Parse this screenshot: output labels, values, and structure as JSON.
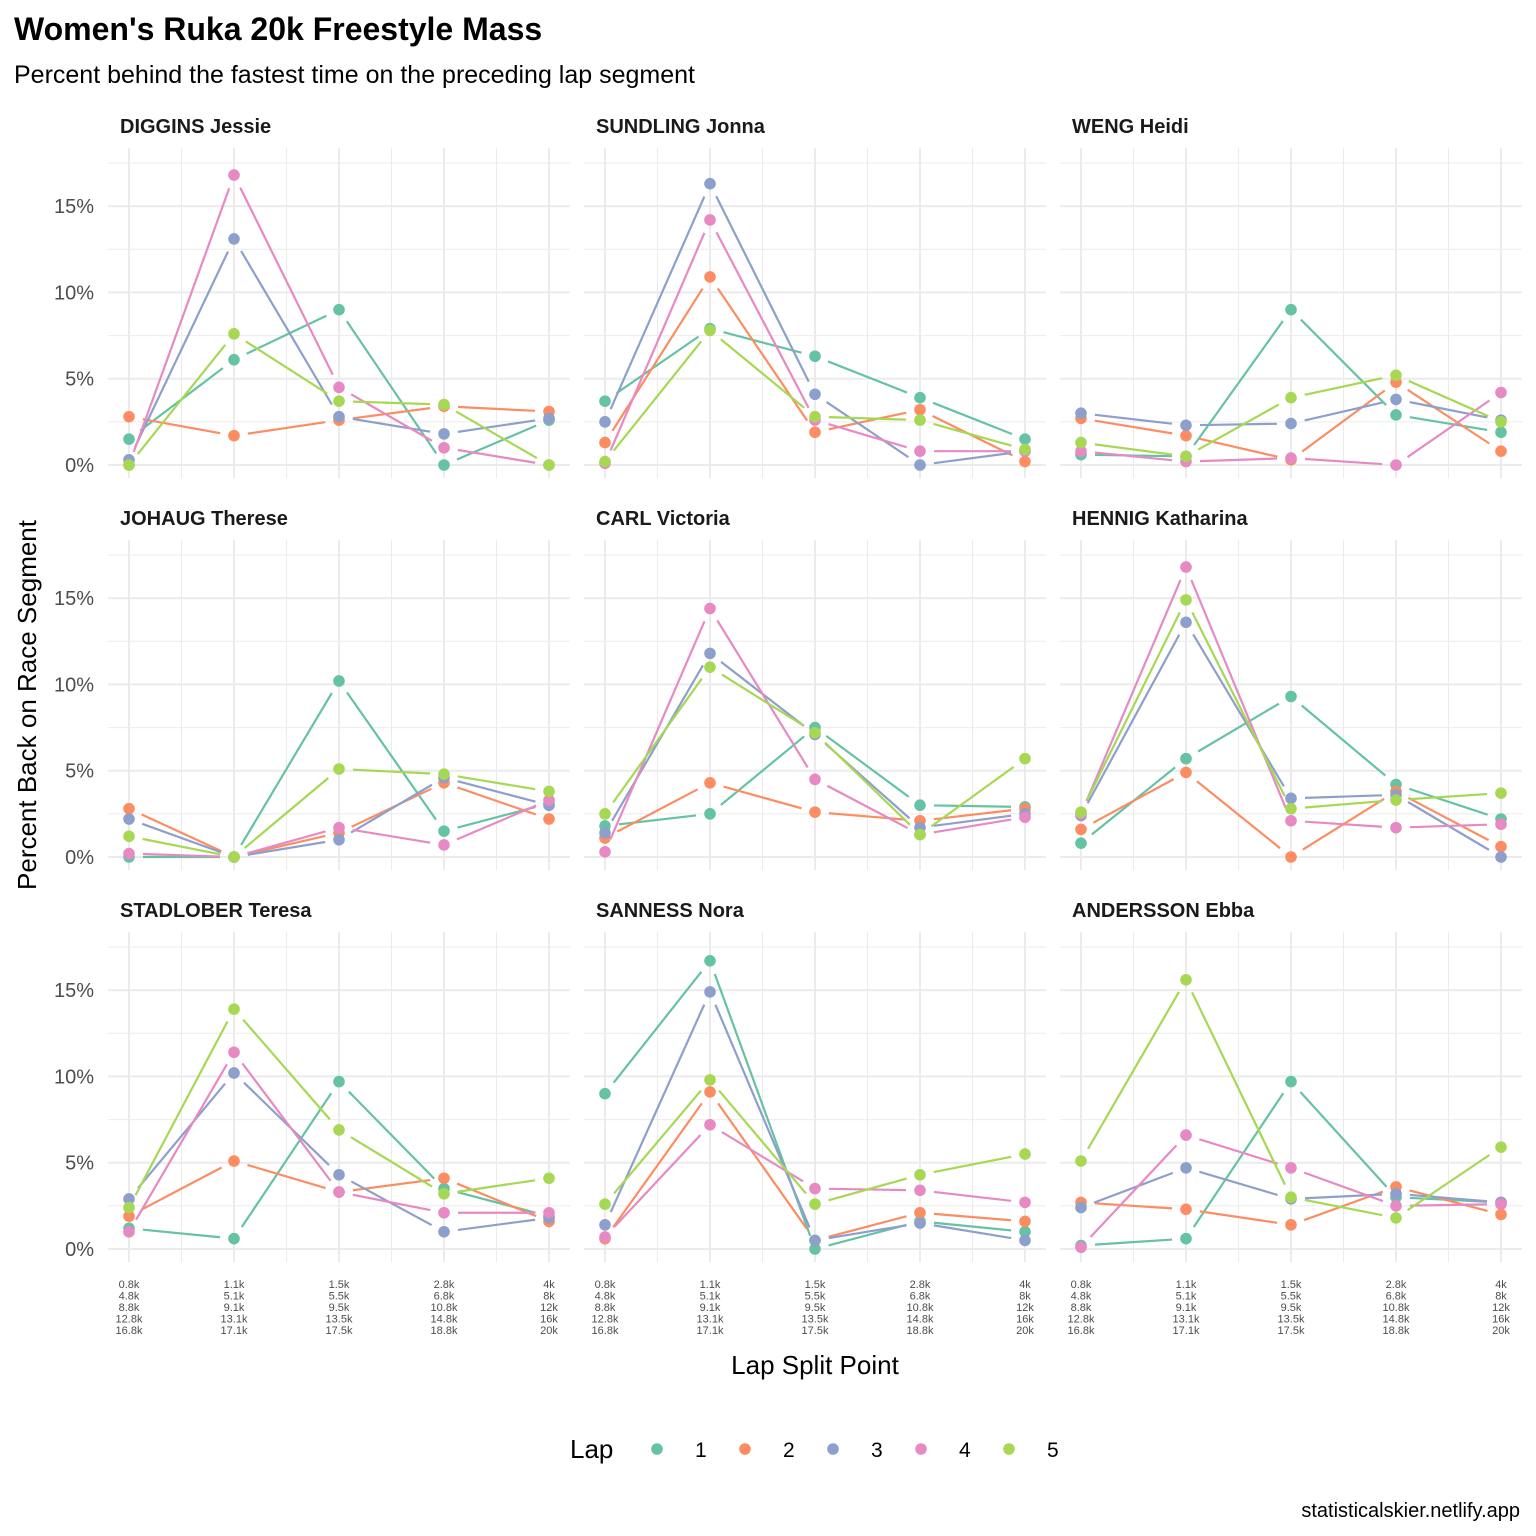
{
  "chart_data": {
    "type": "line",
    "title": "Women's Ruka 20k Freestyle Mass",
    "subtitle": "Percent behind the fastest time on the preceding lap segment",
    "xlabel": "Lap Split Point",
    "ylabel": "Percent Back on Race Segment",
    "caption": "statisticalskier.netlify.app",
    "ylim": [
      0,
      17.5
    ],
    "yticks": [
      "0%",
      "5%",
      "10%",
      "15%"
    ],
    "x_categories": [
      [
        "0.8k",
        "4.8k",
        "8.8k",
        "12.8k",
        "16.8k"
      ],
      [
        "1.1k",
        "5.1k",
        "9.1k",
        "13.1k",
        "17.1k"
      ],
      [
        "1.5k",
        "5.5k",
        "9.5k",
        "13.5k",
        "17.5k"
      ],
      [
        "2.8k",
        "6.8k",
        "10.8k",
        "14.8k",
        "18.8k"
      ],
      [
        "4k",
        "8k",
        "12k",
        "16k",
        "20k"
      ]
    ],
    "legend": {
      "title": "Lap",
      "position": "bottom",
      "entries": [
        {
          "label": "1",
          "color": "#66c2a5"
        },
        {
          "label": "2",
          "color": "#fc8d62"
        },
        {
          "label": "3",
          "color": "#8da0cb"
        },
        {
          "label": "4",
          "color": "#e78ac3"
        },
        {
          "label": "5",
          "color": "#a6d854"
        }
      ]
    },
    "grid": true,
    "panels": [
      {
        "name": "DIGGINS Jessie",
        "series": [
          {
            "lap": "1",
            "values": [
              1.5,
              6.1,
              9.0,
              0.0,
              2.6
            ]
          },
          {
            "lap": "2",
            "values": [
              2.8,
              1.7,
              2.6,
              3.4,
              3.1
            ]
          },
          {
            "lap": "3",
            "values": [
              0.3,
              13.1,
              2.8,
              1.8,
              2.7
            ]
          },
          {
            "lap": "4",
            "values": [
              0.0,
              16.8,
              4.5,
              1.0,
              0.0
            ]
          },
          {
            "lap": "5",
            "values": [
              0.0,
              7.6,
              3.7,
              3.5,
              0.0
            ]
          }
        ]
      },
      {
        "name": "SUNDLING Jonna",
        "series": [
          {
            "lap": "1",
            "values": [
              3.7,
              7.9,
              6.3,
              3.9,
              1.5
            ]
          },
          {
            "lap": "2",
            "values": [
              1.3,
              10.9,
              1.9,
              3.2,
              0.2
            ]
          },
          {
            "lap": "3",
            "values": [
              2.5,
              16.3,
              4.1,
              0.0,
              0.8
            ]
          },
          {
            "lap": "4",
            "values": [
              0.1,
              14.2,
              2.6,
              0.8,
              0.8
            ]
          },
          {
            "lap": "5",
            "values": [
              0.2,
              7.8,
              2.8,
              2.6,
              0.9
            ]
          }
        ]
      },
      {
        "name": "WENG Heidi",
        "series": [
          {
            "lap": "1",
            "values": [
              0.6,
              0.5,
              9.0,
              2.9,
              1.9
            ]
          },
          {
            "lap": "2",
            "values": [
              2.7,
              1.7,
              0.3,
              4.8,
              0.8
            ]
          },
          {
            "lap": "3",
            "values": [
              3.0,
              2.3,
              2.4,
              3.8,
              2.6
            ]
          },
          {
            "lap": "4",
            "values": [
              0.8,
              0.2,
              0.4,
              0.0,
              4.2
            ]
          },
          {
            "lap": "5",
            "values": [
              1.3,
              0.5,
              3.9,
              5.2,
              2.5
            ]
          }
        ]
      },
      {
        "name": "JOHAUG Therese",
        "series": [
          {
            "lap": "1",
            "values": [
              0.0,
              0.0,
              10.2,
              1.5,
              3.1
            ]
          },
          {
            "lap": "2",
            "values": [
              2.8,
              0.0,
              1.4,
              4.3,
              2.2
            ]
          },
          {
            "lap": "3",
            "values": [
              2.2,
              0.0,
              1.0,
              4.6,
              3.0
            ]
          },
          {
            "lap": "4",
            "values": [
              0.2,
              0.0,
              1.7,
              0.7,
              3.3
            ]
          },
          {
            "lap": "5",
            "values": [
              1.2,
              0.0,
              5.1,
              4.8,
              3.8
            ]
          }
        ]
      },
      {
        "name": "CARL Victoria",
        "series": [
          {
            "lap": "1",
            "values": [
              1.8,
              2.5,
              7.5,
              3.0,
              2.9
            ]
          },
          {
            "lap": "2",
            "values": [
              1.1,
              4.3,
              2.6,
              2.1,
              2.8
            ]
          },
          {
            "lap": "3",
            "values": [
              1.4,
              11.8,
              7.1,
              1.7,
              2.5
            ]
          },
          {
            "lap": "4",
            "values": [
              0.3,
              14.4,
              4.5,
              1.3,
              2.3
            ]
          },
          {
            "lap": "5",
            "values": [
              2.5,
              11.0,
              7.2,
              1.3,
              5.7
            ]
          }
        ]
      },
      {
        "name": "HENNIG Katharina",
        "series": [
          {
            "lap": "1",
            "values": [
              0.8,
              5.7,
              9.3,
              4.2,
              2.2
            ]
          },
          {
            "lap": "2",
            "values": [
              1.6,
              4.9,
              0.0,
              3.8,
              0.6
            ]
          },
          {
            "lap": "3",
            "values": [
              2.4,
              13.6,
              3.4,
              3.6,
              0.0
            ]
          },
          {
            "lap": "4",
            "values": [
              2.5,
              16.8,
              2.1,
              1.7,
              1.9
            ]
          },
          {
            "lap": "5",
            "values": [
              2.6,
              14.9,
              2.8,
              3.3,
              3.7
            ]
          }
        ]
      },
      {
        "name": "STADLOBER Teresa",
        "series": [
          {
            "lap": "1",
            "values": [
              1.2,
              0.6,
              9.7,
              3.5,
              1.9
            ]
          },
          {
            "lap": "2",
            "values": [
              1.9,
              5.1,
              3.3,
              4.1,
              1.6
            ]
          },
          {
            "lap": "3",
            "values": [
              2.9,
              10.2,
              4.3,
              1.0,
              1.8
            ]
          },
          {
            "lap": "4",
            "values": [
              1.0,
              11.4,
              3.3,
              2.1,
              2.1
            ]
          },
          {
            "lap": "5",
            "values": [
              2.4,
              13.9,
              6.9,
              3.2,
              4.1
            ]
          }
        ]
      },
      {
        "name": "SANNESS Nora",
        "series": [
          {
            "lap": "1",
            "values": [
              9.0,
              16.7,
              0.0,
              1.6,
              1.0
            ]
          },
          {
            "lap": "2",
            "values": [
              0.6,
              9.1,
              0.5,
              2.1,
              1.6
            ]
          },
          {
            "lap": "3",
            "values": [
              1.4,
              14.9,
              0.5,
              1.5,
              0.5
            ]
          },
          {
            "lap": "4",
            "values": [
              0.7,
              7.2,
              3.5,
              3.4,
              2.7
            ]
          },
          {
            "lap": "5",
            "values": [
              2.6,
              9.8,
              2.6,
              4.3,
              5.5
            ]
          }
        ]
      },
      {
        "name": "ANDERSSON Ebba",
        "series": [
          {
            "lap": "1",
            "values": [
              0.2,
              0.6,
              9.7,
              3.0,
              2.7
            ]
          },
          {
            "lap": "2",
            "values": [
              2.7,
              2.3,
              1.4,
              3.6,
              2.0
            ]
          },
          {
            "lap": "3",
            "values": [
              2.4,
              4.7,
              2.9,
              3.2,
              2.7
            ]
          },
          {
            "lap": "4",
            "values": [
              0.1,
              6.6,
              4.7,
              2.5,
              2.6
            ]
          },
          {
            "lap": "5",
            "values": [
              5.1,
              15.6,
              3.0,
              1.8,
              5.9
            ]
          }
        ]
      }
    ]
  }
}
